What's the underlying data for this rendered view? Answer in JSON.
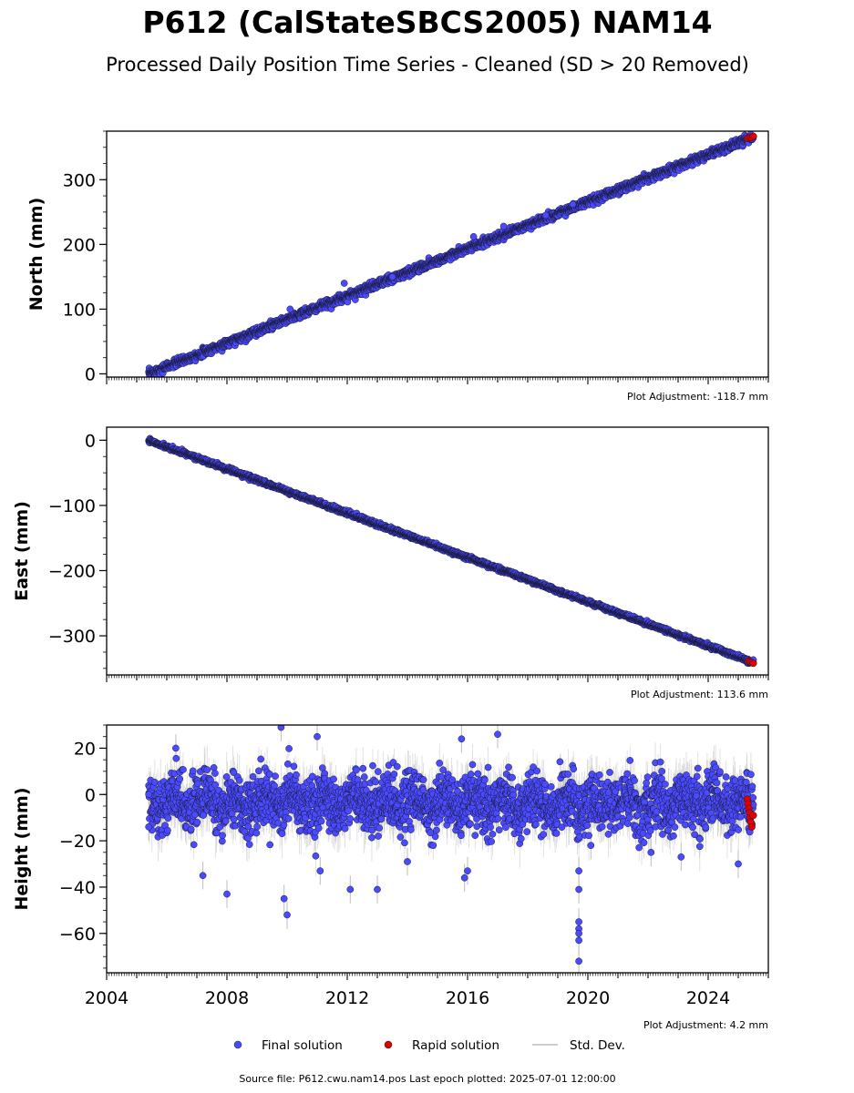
{
  "title": "P612 (CalStateSBCS2005) NAM14",
  "subtitle": "Processed Daily Position Time Series - Cleaned (SD > 20 Removed)",
  "source_note": "Source file: P612.cwu.nam14.pos  Last epoch plotted: 2025-07-01 12:00:00",
  "legend": {
    "final": "Final solution",
    "rapid": "Rapid solution",
    "std": "Std. Dev."
  },
  "colors": {
    "final": "#4a4aff",
    "rapid": "#e00000",
    "std": "#bdbdbd",
    "marker_edge": "#1a1a3a"
  },
  "chart_data": [
    {
      "type": "scatter",
      "panel": "north",
      "ylabel": "North (mm)",
      "adjustment_note": "Plot Adjustment: -118.7 mm",
      "xlim": [
        2004,
        2026
      ],
      "ylim": [
        -5,
        375
      ],
      "yticks": [
        0,
        100,
        200,
        300
      ],
      "trend": {
        "start": [
          2005.4,
          0
        ],
        "end": [
          2025.5,
          366
        ]
      },
      "scatter_sd": 3,
      "rapid_points": {
        "x": [
          2025.3,
          2025.35,
          2025.4,
          2025.45,
          2025.5
        ],
        "y": [
          364,
          365,
          366,
          365,
          367
        ]
      },
      "outliers": {
        "x": [
          2010.1,
          2011.9,
          2013.5,
          2016.2,
          2017.2,
          2018.6,
          2019.5
        ],
        "y": [
          100,
          140,
          150,
          212,
          228,
          245,
          262
        ]
      }
    },
    {
      "type": "scatter",
      "panel": "east",
      "ylabel": "East (mm)",
      "adjustment_note": "Plot Adjustment: 113.6 mm",
      "xlim": [
        2004,
        2026
      ],
      "ylim": [
        -360,
        20
      ],
      "yticks": [
        0,
        -100,
        -200,
        -300
      ],
      "trend": {
        "start": [
          2005.4,
          0
        ],
        "end": [
          2025.5,
          -341
        ]
      },
      "scatter_sd": 1.5,
      "rapid_points": {
        "x": [
          2025.35,
          2025.4,
          2025.45,
          2025.5
        ],
        "y": [
          -339,
          -340,
          -341,
          -342
        ]
      },
      "outliers": {
        "x": [],
        "y": []
      }
    },
    {
      "type": "scatter",
      "panel": "height",
      "ylabel": "Height (mm)",
      "adjustment_note": "Plot Adjustment: 4.2 mm",
      "xlim": [
        2004,
        2026
      ],
      "ylim": [
        -77,
        30
      ],
      "yticks": [
        20,
        0,
        -20,
        -40,
        -60
      ],
      "xticks": [
        2004,
        2008,
        2012,
        2016,
        2020,
        2024
      ],
      "trend": {
        "start": [
          2005.4,
          -3
        ],
        "end": [
          2025.5,
          -4
        ]
      },
      "scatter_sd": 6,
      "rapid_points": {
        "x": [
          2025.3,
          2025.32,
          2025.35,
          2025.38,
          2025.4,
          2025.42,
          2025.45,
          2025.5
        ],
        "y": [
          -2,
          -4,
          -6,
          -8,
          -10,
          -12,
          -14,
          -9
        ]
      },
      "outliers": {
        "x": [
          2005.4,
          2005.4,
          2006.3,
          2007.2,
          2008.0,
          2009.8,
          2009.9,
          2010.0,
          2011.0,
          2011.1,
          2012.1,
          2013.0,
          2014.0,
          2015.8,
          2015.9,
          2016.0,
          2017.0,
          2019.7,
          2019.7,
          2019.7,
          2019.7,
          2019.7,
          2019.7,
          2019.7,
          2020.1,
          2022.1,
          2023.1,
          2025.0
        ],
        "y": [
          0,
          -14,
          20,
          -35,
          -43,
          29,
          -45,
          -52,
          25,
          -33,
          -41,
          -41,
          -29,
          24,
          -36,
          -33,
          26,
          -33,
          -41,
          -55,
          -58,
          -60,
          -63,
          -72,
          -22,
          -25,
          -27,
          -30
        ]
      }
    }
  ]
}
